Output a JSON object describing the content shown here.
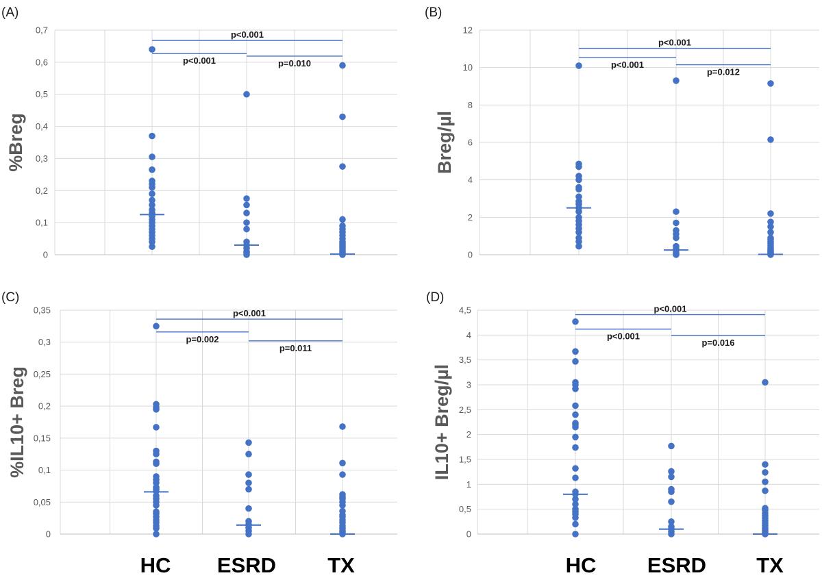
{
  "colors": {
    "marker": "#4472c4",
    "grid": "#d9d9d9",
    "bracket": "#4472c4"
  },
  "category_labels": [
    "HC",
    "ESRD",
    "TX"
  ],
  "chart_data": [
    {
      "panel": "(A)",
      "type": "scatter",
      "ylabel": "%Breg",
      "ylim": [
        0,
        0.7
      ],
      "yticks": [
        "0",
        "0,1",
        "0,2",
        "0,3",
        "0,4",
        "0,5",
        "0,6",
        "0,7"
      ],
      "categories": [
        "HC",
        "ESRD",
        "TX"
      ],
      "points": {
        "HC": [
          0.64,
          0.37,
          0.305,
          0.265,
          0.23,
          0.22,
          0.21,
          0.19,
          0.17,
          0.155,
          0.14,
          0.13,
          0.12,
          0.11,
          0.1,
          0.09,
          0.08,
          0.07,
          0.06,
          0.05,
          0.04,
          0.025
        ],
        "ESRD": [
          0.5,
          0.175,
          0.155,
          0.13,
          0.1,
          0.08,
          0.04,
          0.03,
          0.02,
          0.01,
          0.005,
          0.0
        ],
        "TX": [
          0.59,
          0.43,
          0.275,
          0.11,
          0.09,
          0.08,
          0.07,
          0.06,
          0.05,
          0.04,
          0.035,
          0.03,
          0.025,
          0.02,
          0.015,
          0.01,
          0.005,
          0.0
        ]
      },
      "medians": {
        "HC": 0.125,
        "ESRD": 0.03,
        "TX": 0.002
      },
      "comparisons": [
        {
          "from": "HC",
          "to": "TX",
          "y": 0.668,
          "label": "p<0.001"
        },
        {
          "from": "HC",
          "to": "ESRD",
          "y": 0.627,
          "label": "p<0.001"
        },
        {
          "from": "ESRD",
          "to": "TX",
          "y": 0.619,
          "label": "p=0.010"
        }
      ]
    },
    {
      "panel": "(B)",
      "type": "scatter",
      "ylabel": "Breg/µl",
      "ylim": [
        0,
        12
      ],
      "yticks": [
        "0",
        "2",
        "4",
        "6",
        "8",
        "10",
        "12"
      ],
      "categories": [
        "HC",
        "ESRD",
        "TX"
      ],
      "points": {
        "HC": [
          10.1,
          4.85,
          4.7,
          4.2,
          4.0,
          3.6,
          3.5,
          3.1,
          2.85,
          2.7,
          2.5,
          2.3,
          2.0,
          1.8,
          1.6,
          1.4,
          1.2,
          0.9,
          0.7,
          0.45
        ],
        "ESRD": [
          9.3,
          2.3,
          1.7,
          1.3,
          1.1,
          0.9,
          0.45,
          0.3,
          0.2,
          0.1,
          0.05,
          0.0
        ],
        "TX": [
          9.15,
          6.15,
          2.2,
          1.75,
          1.5,
          1.2,
          0.9,
          0.8,
          0.7,
          0.6,
          0.5,
          0.4,
          0.3,
          0.25,
          0.2,
          0.15,
          0.1,
          0.05,
          0.0
        ]
      },
      "medians": {
        "HC": 2.5,
        "ESRD": 0.25,
        "TX": 0.02
      },
      "comparisons": [
        {
          "from": "HC",
          "to": "TX",
          "y": 11.03,
          "label": "p<0.001"
        },
        {
          "from": "HC",
          "to": "ESRD",
          "y": 10.53,
          "label": "p<0.001"
        },
        {
          "from": "ESRD",
          "to": "TX",
          "y": 10.15,
          "label": "p=0.012"
        }
      ]
    },
    {
      "panel": "(C)",
      "type": "scatter",
      "ylabel": "%IL10+ Breg",
      "ylim": [
        0,
        0.35
      ],
      "yticks": [
        "0",
        "0,05",
        "0,1",
        "0,15",
        "0,2",
        "0,25",
        "0,3",
        "0,35"
      ],
      "categories": [
        "HC",
        "ESRD",
        "TX"
      ],
      "points": {
        "HC": [
          0.325,
          0.203,
          0.198,
          0.195,
          0.167,
          0.13,
          0.125,
          0.113,
          0.11,
          0.09,
          0.085,
          0.08,
          0.073,
          0.07,
          0.067,
          0.06,
          0.055,
          0.05,
          0.045,
          0.035,
          0.032,
          0.027,
          0.022,
          0.018,
          0.013,
          0.009,
          0.0
        ],
        "ESRD": [
          0.143,
          0.125,
          0.093,
          0.08,
          0.07,
          0.04,
          0.02,
          0.015,
          0.01,
          0.005,
          0.0
        ],
        "TX": [
          0.168,
          0.111,
          0.093,
          0.062,
          0.058,
          0.055,
          0.05,
          0.045,
          0.036,
          0.03,
          0.027,
          0.022,
          0.018,
          0.013,
          0.009,
          0.005,
          0.003,
          0.0
        ]
      },
      "medians": {
        "HC": 0.066,
        "ESRD": 0.014,
        "TX": 0.0
      },
      "comparisons": [
        {
          "from": "HC",
          "to": "TX",
          "y": 0.336,
          "label": "p<0.001"
        },
        {
          "from": "HC",
          "to": "ESRD",
          "y": 0.316,
          "label": "p=0.002"
        },
        {
          "from": "ESRD",
          "to": "TX",
          "y": 0.302,
          "label": "p=0.011"
        }
      ]
    },
    {
      "panel": "(D)",
      "type": "scatter",
      "ylabel": "IL10+ Breg/µl",
      "ylim": [
        0,
        4.5
      ],
      "yticks": [
        "0",
        "0,5",
        "1",
        "1,5",
        "2",
        "2,5",
        "3",
        "3,5",
        "4",
        "4,5"
      ],
      "categories": [
        "HC",
        "ESRD",
        "TX"
      ],
      "points": {
        "HC": [
          4.27,
          3.67,
          3.47,
          3.05,
          3.0,
          2.92,
          2.58,
          2.4,
          2.23,
          2.2,
          2.15,
          1.95,
          1.74,
          1.32,
          1.13,
          0.85,
          0.8,
          0.7,
          0.6,
          0.5,
          0.45,
          0.4,
          0.33,
          0.2,
          0.0
        ],
        "ESRD": [
          1.77,
          1.26,
          1.15,
          0.9,
          0.85,
          0.65,
          0.25,
          0.15,
          0.1,
          0.05,
          0.0
        ],
        "TX": [
          3.05,
          1.4,
          1.24,
          1.05,
          0.87,
          0.52,
          0.48,
          0.42,
          0.37,
          0.32,
          0.27,
          0.22,
          0.17,
          0.12,
          0.08,
          0.05,
          0.02,
          0.0
        ]
      },
      "medians": {
        "HC": 0.8,
        "ESRD": 0.1,
        "TX": 0.0
      },
      "comparisons": [
        {
          "from": "HC",
          "to": "TX",
          "y": 4.41,
          "label": "p<0.001"
        },
        {
          "from": "HC",
          "to": "ESRD",
          "y": 4.12,
          "label": "p<0.001"
        },
        {
          "from": "ESRD",
          "to": "TX",
          "y": 3.99,
          "label": "p=0.016"
        }
      ]
    }
  ]
}
